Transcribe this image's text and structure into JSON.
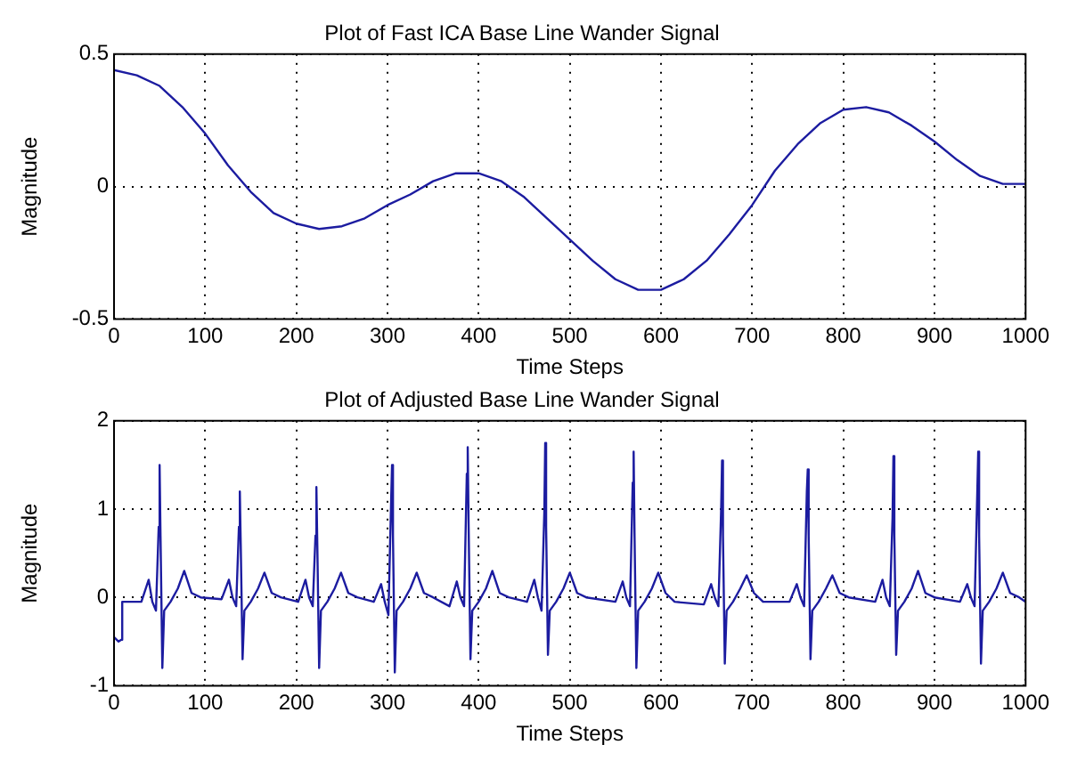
{
  "chart_data": [
    {
      "type": "line",
      "title": "Plot of Fast ICA Base Line Wander Signal",
      "xlabel": "Time Steps",
      "ylabel": "Magnitude",
      "xlim": [
        0,
        1000
      ],
      "xticks": [
        0,
        100,
        200,
        300,
        400,
        500,
        600,
        700,
        800,
        900,
        1000
      ],
      "ylim": [
        -0.5,
        0.5
      ],
      "yticks": [
        -0.5,
        0,
        0.5
      ],
      "grid": true,
      "legend": false,
      "marker": "none",
      "line_style": "solid",
      "series": [
        {
          "color": "#1c1ca0",
          "x": [
            0,
            25,
            50,
            75,
            100,
            125,
            150,
            175,
            200,
            225,
            250,
            275,
            300,
            325,
            350,
            375,
            400,
            425,
            450,
            475,
            500,
            525,
            550,
            575,
            600,
            625,
            650,
            675,
            700,
            725,
            750,
            775,
            800,
            825,
            850,
            875,
            900,
            925,
            950,
            975,
            1000
          ],
          "values": [
            0.44,
            0.42,
            0.38,
            0.3,
            0.2,
            0.08,
            -0.02,
            -0.1,
            -0.14,
            -0.16,
            -0.15,
            -0.12,
            -0.07,
            -0.03,
            0.02,
            0.05,
            0.05,
            0.02,
            -0.04,
            -0.12,
            -0.2,
            -0.28,
            -0.35,
            -0.39,
            -0.39,
            -0.35,
            -0.28,
            -0.18,
            -0.07,
            0.06,
            0.16,
            0.24,
            0.29,
            0.3,
            0.28,
            0.23,
            0.17,
            0.1,
            0.04,
            0.01,
            0.01
          ]
        }
      ]
    },
    {
      "type": "line",
      "title": "Plot of Adjusted Base Line Wander Signal",
      "xlabel": "Time Steps",
      "ylabel": "Magnitude",
      "xlim": [
        0,
        1000
      ],
      "xticks": [
        0,
        100,
        200,
        300,
        400,
        500,
        600,
        700,
        800,
        900,
        1000
      ],
      "ylim": [
        -1,
        2
      ],
      "yticks": [
        -1,
        0,
        1,
        2
      ],
      "grid": true,
      "legend": false,
      "marker": "none",
      "line_style": "solid",
      "series": [
        {
          "color": "#1c1ca0",
          "x": [
            0,
            5,
            8,
            9,
            30,
            38,
            42,
            46,
            49,
            50,
            51,
            53,
            55,
            62,
            70,
            77,
            85,
            95,
            118,
            126,
            130,
            134,
            137,
            138,
            139,
            141,
            143,
            150,
            158,
            165,
            173,
            183,
            202,
            210,
            214,
            218,
            221,
            222,
            223,
            225,
            227,
            234,
            242,
            249,
            257,
            267,
            285,
            293,
            297,
            301,
            304,
            305,
            306,
            308,
            310,
            317,
            325,
            332,
            340,
            350,
            368,
            376,
            380,
            384,
            387,
            388,
            389,
            391,
            393,
            400,
            408,
            415,
            423,
            433,
            453,
            461,
            465,
            469,
            472,
            473,
            474,
            476,
            478,
            485,
            493,
            500,
            508,
            518,
            550,
            558,
            562,
            566,
            569,
            570,
            571,
            573,
            575,
            582,
            590,
            597,
            605,
            615,
            647,
            655,
            659,
            663,
            666,
            667,
            668,
            670,
            672,
            679,
            687,
            694,
            702,
            712,
            741,
            749,
            753,
            757,
            760,
            761,
            762,
            764,
            766,
            773,
            781,
            788,
            796,
            806,
            835,
            843,
            847,
            851,
            854,
            855,
            856,
            858,
            860,
            867,
            875,
            882,
            890,
            900,
            928,
            936,
            940,
            944,
            947,
            948,
            949,
            951,
            953,
            960,
            968,
            975,
            983,
            993,
            1000
          ],
          "values": [
            -0.45,
            -0.5,
            -0.48,
            -0.05,
            -0.05,
            0.2,
            -0.05,
            -0.15,
            0.8,
            1.5,
            0.7,
            -0.8,
            -0.15,
            -0.05,
            0.1,
            0.3,
            0.05,
            0,
            -0.02,
            0.2,
            0,
            -0.1,
            0.8,
            1.2,
            0.6,
            -0.7,
            -0.15,
            -0.05,
            0.1,
            0.28,
            0.05,
            0,
            -0.05,
            0.2,
            0,
            -0.1,
            0.7,
            1.25,
            0.6,
            -0.8,
            -0.15,
            -0.05,
            0.1,
            0.28,
            0.05,
            0,
            -0.05,
            0.15,
            -0.05,
            -0.2,
            1.1,
            1.5,
            0.7,
            -0.85,
            -0.15,
            -0.05,
            0.1,
            0.28,
            0.05,
            0,
            -0.1,
            0.18,
            0,
            -0.1,
            1.4,
            1.7,
            0.8,
            -0.7,
            -0.15,
            -0.05,
            0.1,
            0.3,
            0.05,
            0,
            -0.05,
            0.2,
            0,
            -0.15,
            0.95,
            1.75,
            0.8,
            -0.65,
            -0.15,
            -0.05,
            0.1,
            0.28,
            0.05,
            0,
            -0.05,
            0.18,
            0,
            -0.1,
            1.3,
            1.65,
            0.7,
            -0.8,
            -0.15,
            -0.05,
            0.1,
            0.28,
            0.05,
            -0.05,
            -0.08,
            0.15,
            0,
            -0.1,
            1.0,
            1.55,
            0.7,
            -0.75,
            -0.15,
            -0.05,
            0.1,
            0.25,
            0.05,
            -0.05,
            -0.05,
            0.15,
            0,
            -0.1,
            1.2,
            1.45,
            0.7,
            -0.7,
            -0.15,
            -0.05,
            0.1,
            0.25,
            0.05,
            0,
            -0.05,
            0.2,
            0,
            -0.1,
            0.9,
            1.6,
            0.7,
            -0.65,
            -0.15,
            -0.05,
            0.1,
            0.3,
            0.05,
            0,
            -0.05,
            0.15,
            0,
            -0.1,
            1.2,
            1.65,
            0.7,
            -0.75,
            -0.15,
            -0.05,
            0.1,
            0.28,
            0.05,
            0,
            -0.05
          ]
        }
      ]
    }
  ]
}
